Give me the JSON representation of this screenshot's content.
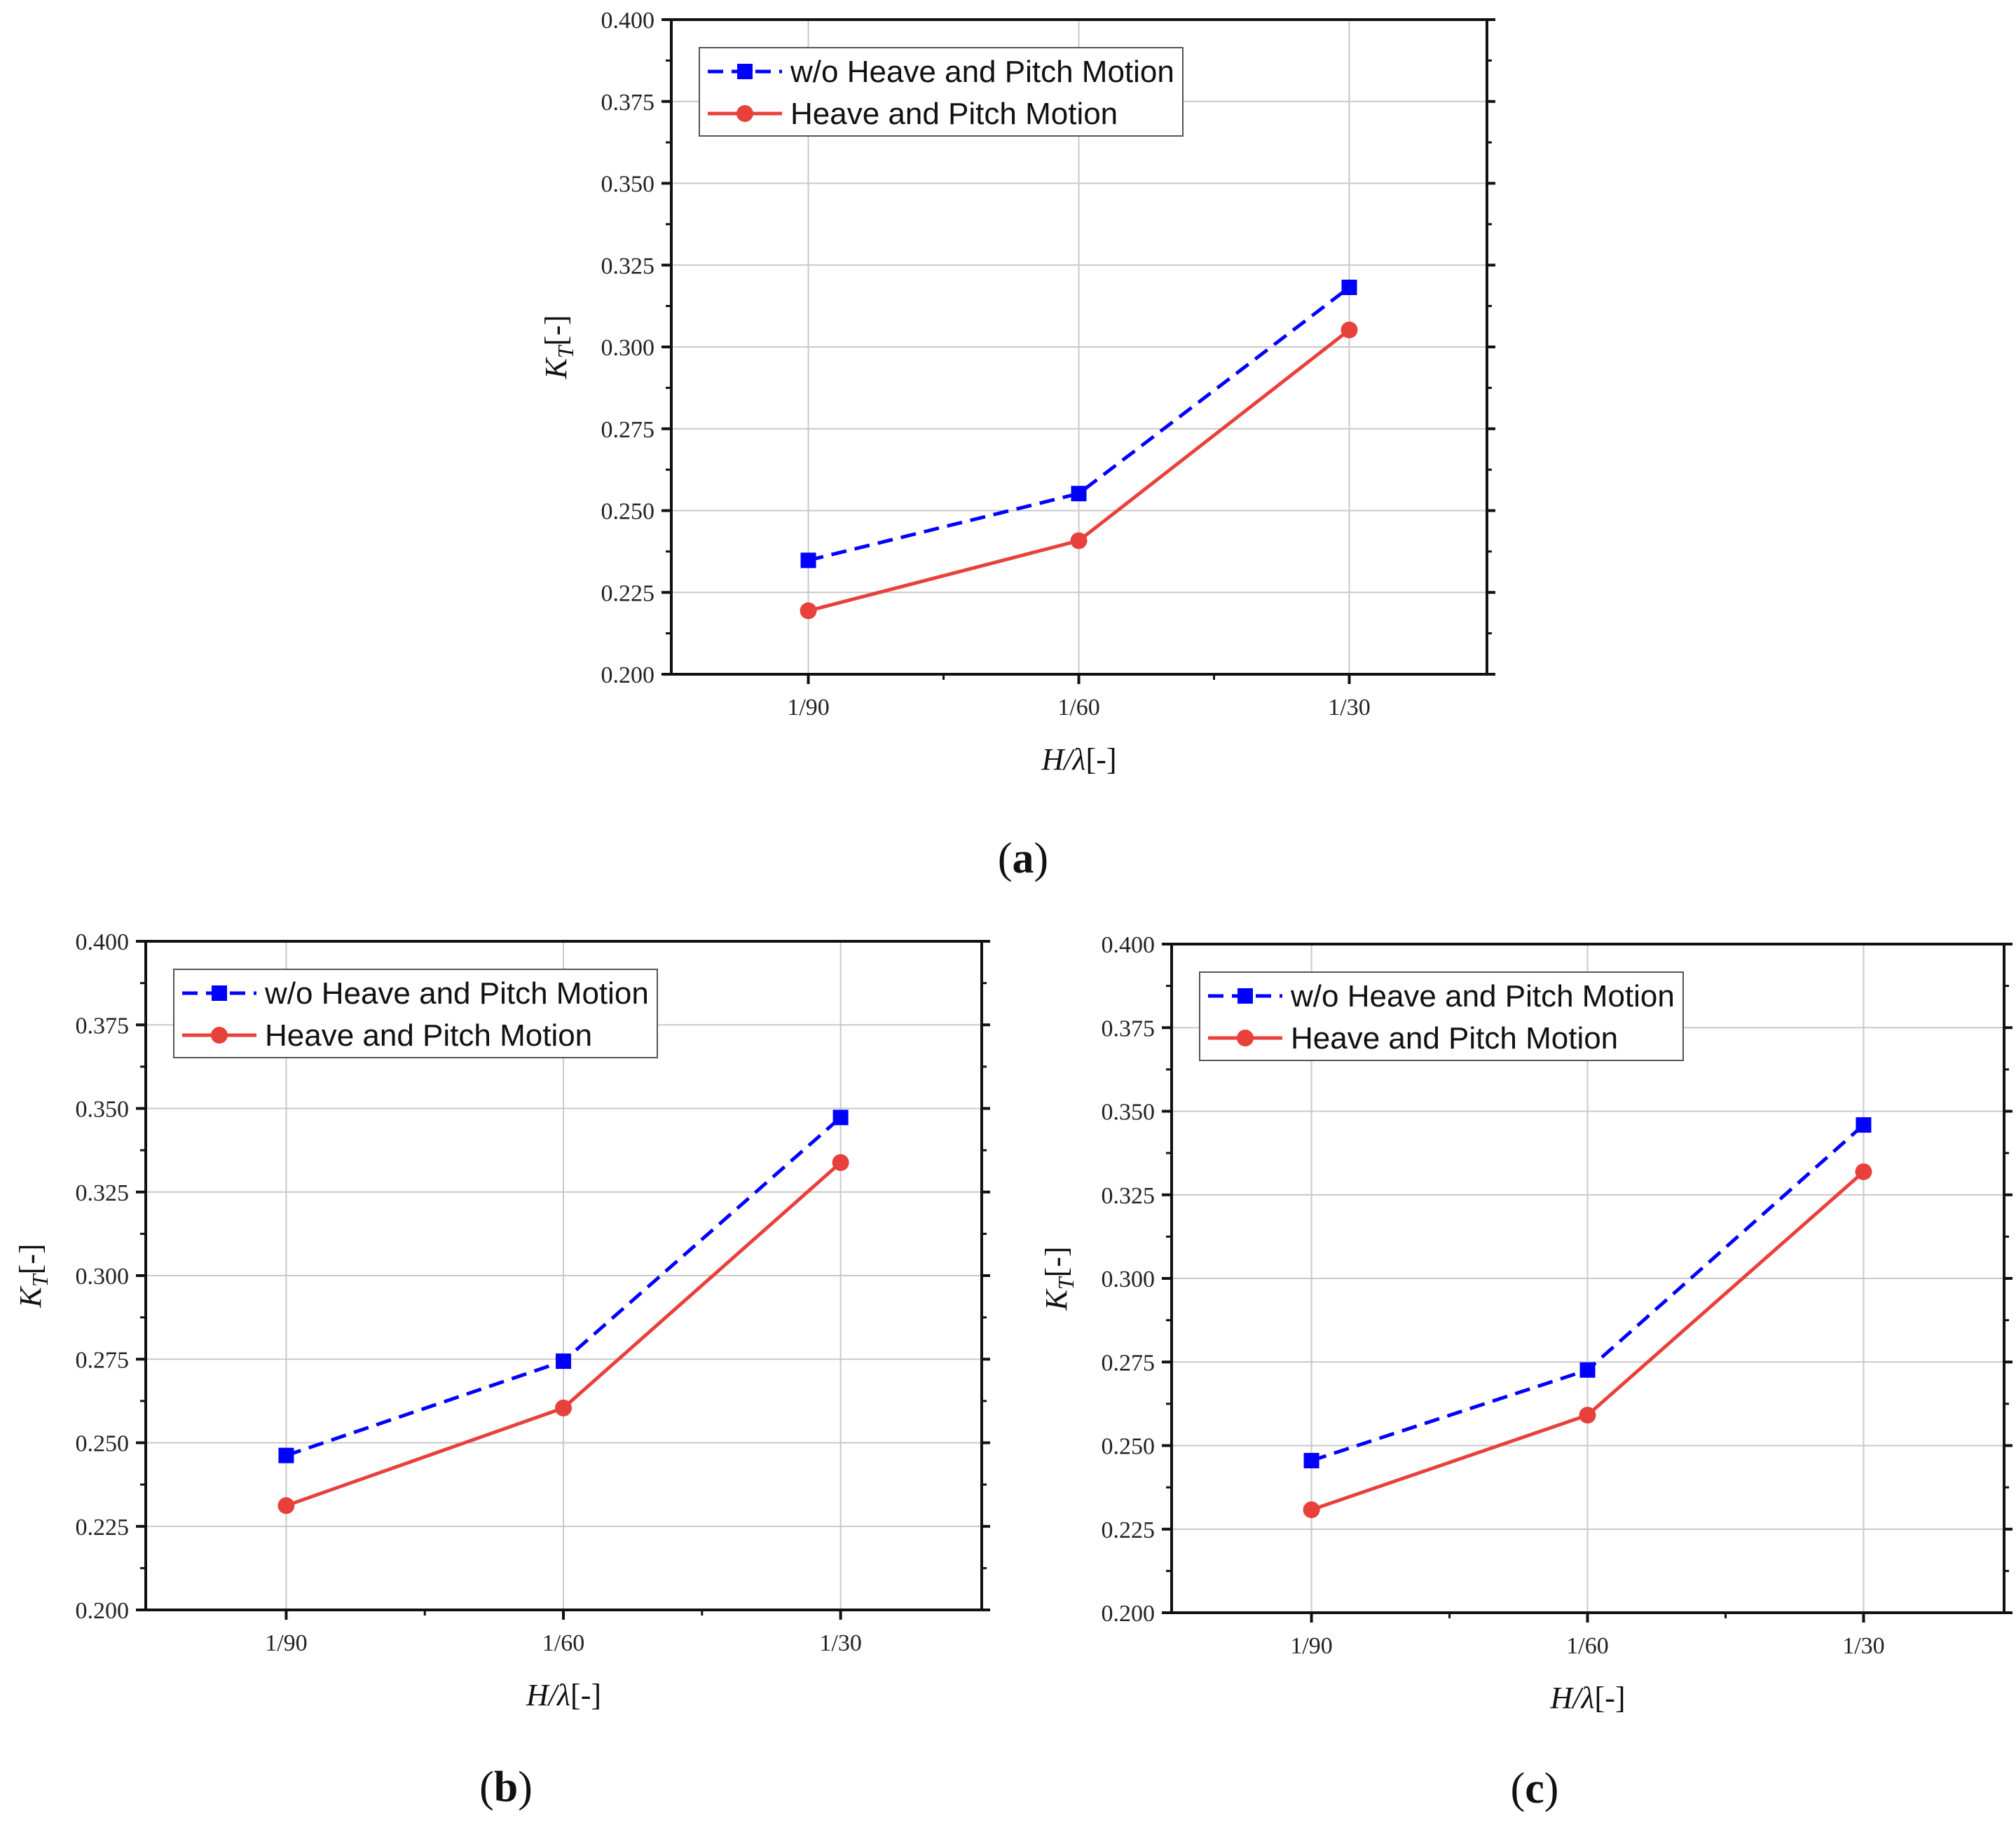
{
  "colors": {
    "series_a": "#0000ff",
    "series_b": "#e8413c",
    "grid": "#c9c9c9",
    "axis": "#111111"
  },
  "chart_data": [
    {
      "type": "line",
      "panel_label": "(a)",
      "panel_letter": "a",
      "categories": [
        "1/90",
        "1/60",
        "1/30"
      ],
      "series": [
        {
          "name": "w/o Heave and Pitch Motion",
          "style": "dashed",
          "marker": "square",
          "color": "#0000ff",
          "values": [
            0.2348,
            0.2552,
            0.3182
          ]
        },
        {
          "name": "Heave and Pitch Motion",
          "style": "solid",
          "marker": "circle",
          "color": "#e8413c",
          "values": [
            0.2194,
            0.2408,
            0.3052
          ]
        }
      ],
      "ylim": [
        0.2,
        0.4
      ],
      "yticks": [
        "0.200",
        "0.225",
        "0.250",
        "0.275",
        "0.300",
        "0.325",
        "0.350",
        "0.375",
        "0.400"
      ],
      "xlabel_main": "H/λ",
      "xlabel_suffix": "[-]",
      "ylabel_main": "K",
      "ylabel_sub": "T",
      "ylabel_suffix": "[-]",
      "grid": true,
      "legend_position": "top-left"
    },
    {
      "type": "line",
      "panel_label": "(b)",
      "panel_letter": "b",
      "categories": [
        "1/90",
        "1/60",
        "1/30"
      ],
      "series": [
        {
          "name": "w/o Heave and Pitch Motion",
          "style": "dashed",
          "marker": "square",
          "color": "#0000ff",
          "values": [
            0.2462,
            0.2744,
            0.3473
          ]
        },
        {
          "name": "Heave and Pitch Motion",
          "style": "solid",
          "marker": "circle",
          "color": "#e8413c",
          "values": [
            0.2312,
            0.2604,
            0.3338
          ]
        }
      ],
      "ylim": [
        0.2,
        0.4
      ],
      "yticks": [
        "0.200",
        "0.225",
        "0.250",
        "0.275",
        "0.300",
        "0.325",
        "0.350",
        "0.375",
        "0.400"
      ],
      "xlabel_main": "H/λ",
      "xlabel_suffix": "[-]",
      "ylabel_main": "K",
      "ylabel_sub": "T",
      "ylabel_suffix": "[-]",
      "grid": true,
      "legend_position": "top-left"
    },
    {
      "type": "line",
      "panel_label": "(c)",
      "panel_letter": "c",
      "categories": [
        "1/90",
        "1/60",
        "1/30"
      ],
      "series": [
        {
          "name": "w/o Heave and Pitch Motion",
          "style": "dashed",
          "marker": "square",
          "color": "#0000ff",
          "values": [
            0.2455,
            0.2726,
            0.3459
          ]
        },
        {
          "name": "Heave and Pitch Motion",
          "style": "solid",
          "marker": "circle",
          "color": "#e8413c",
          "values": [
            0.2308,
            0.2591,
            0.3319
          ]
        }
      ],
      "ylim": [
        0.2,
        0.4
      ],
      "yticks": [
        "0.200",
        "0.225",
        "0.250",
        "0.275",
        "0.300",
        "0.325",
        "0.350",
        "0.375",
        "0.400"
      ],
      "xlabel_main": "H/λ",
      "xlabel_suffix": "[-]",
      "ylabel_main": "K",
      "ylabel_sub": "T",
      "ylabel_suffix": "[-]",
      "grid": true,
      "legend_position": "top-left"
    }
  ]
}
